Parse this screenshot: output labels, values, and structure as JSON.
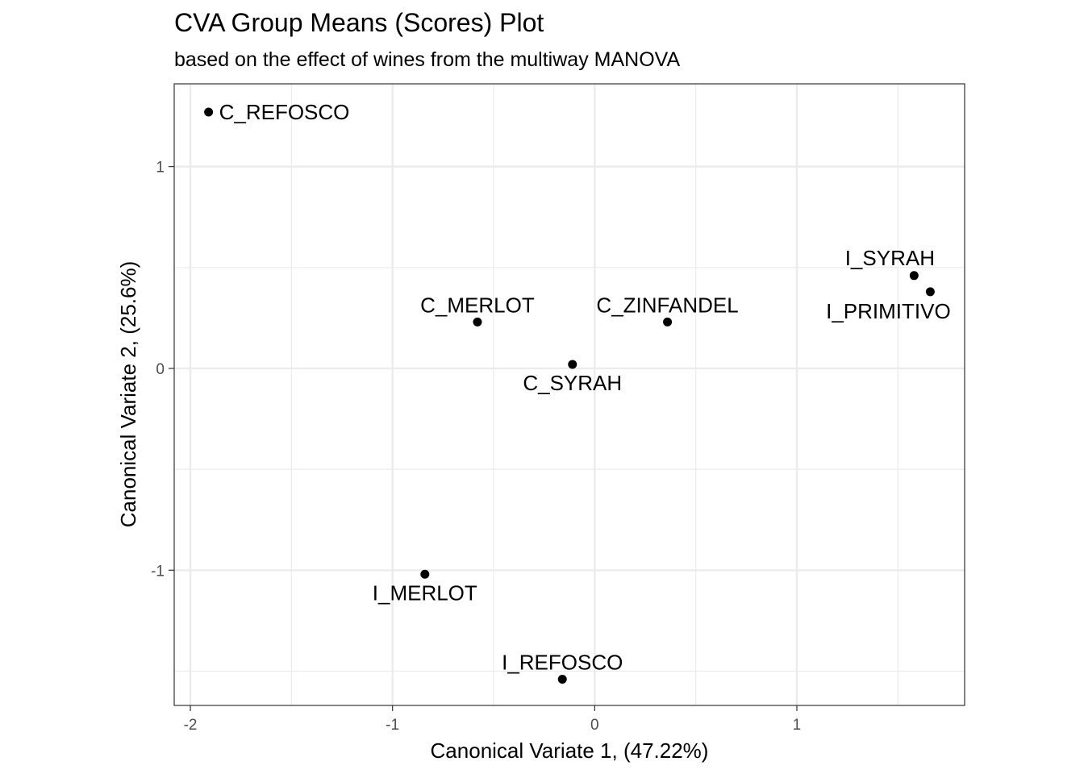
{
  "chart_data": {
    "type": "scatter",
    "title": "CVA Group Means (Scores) Plot",
    "subtitle": "based on the effect of wines from the multiway MANOVA",
    "xlabel": "Canonical Variate 1, (47.22%)",
    "ylabel": "Canonical Variate 2, (25.6%)",
    "xlim": [
      -2.08,
      1.83
    ],
    "ylim": [
      -1.67,
      1.41
    ],
    "x_ticks": [
      -2,
      -1,
      0,
      1
    ],
    "x_tick_labels": [
      "-2",
      "-1",
      "0",
      "1"
    ],
    "y_ticks": [
      -1,
      0,
      1
    ],
    "y_tick_labels": [
      "-1",
      "0",
      "1"
    ],
    "grid": true,
    "legend": "none",
    "point_color": "#000000",
    "points": [
      {
        "label": "C_REFOSCO",
        "x": -1.91,
        "y": 1.27,
        "label_position": "right"
      },
      {
        "label": "I_SYRAH",
        "x": 1.58,
        "y": 0.46,
        "label_position": "above-left"
      },
      {
        "label": "I_PRIMITIVO",
        "x": 1.66,
        "y": 0.38,
        "label_position": "below-left"
      },
      {
        "label": "C_MERLOT",
        "x": -0.58,
        "y": 0.23,
        "label_position": "above"
      },
      {
        "label": "C_ZINFANDEL",
        "x": 0.36,
        "y": 0.23,
        "label_position": "above"
      },
      {
        "label": "C_SYRAH",
        "x": -0.11,
        "y": 0.02,
        "label_position": "below"
      },
      {
        "label": "I_MERLOT",
        "x": -0.84,
        "y": -1.02,
        "label_position": "below"
      },
      {
        "label": "I_REFOSCO",
        "x": -0.16,
        "y": -1.54,
        "label_position": "above"
      }
    ]
  }
}
